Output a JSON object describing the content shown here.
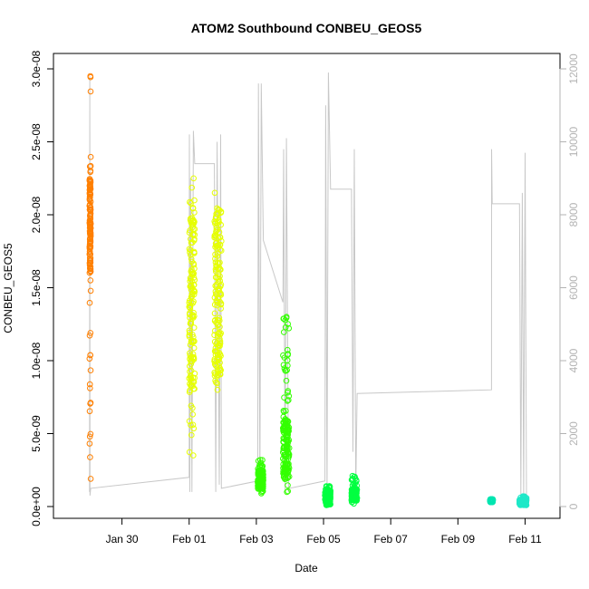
{
  "chart_data": {
    "type": "scatter",
    "title": "ATOM2 Southbound CONBEU_GEOS5",
    "xlabel": "Date",
    "ylabel": "CONBEU_GEOS5",
    "x_axis": {
      "type": "date",
      "range": [
        "2016-01-28T12:00",
        "2016-02-11T12:00"
      ],
      "ticks": [
        {
          "value": "2016-01-30",
          "label": "Jan 30"
        },
        {
          "value": "2016-02-01",
          "label": "Feb 01"
        },
        {
          "value": "2016-02-03",
          "label": "Feb 03"
        },
        {
          "value": "2016-02-05",
          "label": "Feb 05"
        },
        {
          "value": "2016-02-07",
          "label": "Feb 07"
        },
        {
          "value": "2016-02-09",
          "label": "Feb 09"
        },
        {
          "value": "2016-02-11",
          "label": "Feb 11"
        }
      ]
    },
    "y_axis": {
      "range": [
        0,
        3e-08
      ],
      "ticks": [
        {
          "value": 0,
          "label": "0.0e+00"
        },
        {
          "value": 5e-09,
          "label": "5.0e-09"
        },
        {
          "value": 1e-08,
          "label": "1.0e-08"
        },
        {
          "value": 1.5e-08,
          "label": "1.5e-08"
        },
        {
          "value": 2e-08,
          "label": "2.0e-08"
        },
        {
          "value": 2.5e-08,
          "label": "2.5e-08"
        },
        {
          "value": 3e-08,
          "label": "3.0e-08"
        }
      ]
    },
    "y2_axis": {
      "range": [
        0,
        12000
      ],
      "color": "#b3b3b3",
      "ticks": [
        {
          "value": 0,
          "label": "0"
        },
        {
          "value": 2000,
          "label": "2000"
        },
        {
          "value": 4000,
          "label": "4000"
        },
        {
          "value": 6000,
          "label": "6000"
        },
        {
          "value": 8000,
          "label": "8000"
        },
        {
          "value": 10000,
          "label": "10000"
        },
        {
          "value": 12000,
          "label": "12000"
        }
      ]
    },
    "grid": false,
    "legend": "none",
    "scatter_groups": [
      {
        "color": "#ff7f00",
        "x_start": "2016-01-29T00:50",
        "x_end": "2016-01-29T01:40",
        "y_min": 1.9e-09,
        "y_max": 2.95e-08,
        "y_dense": [
          1.6e-08,
          2.25e-08
        ]
      },
      {
        "color": "#e6ff00",
        "x_start": "2016-02-01T00:00",
        "x_end": "2016-02-01T04:00",
        "y_min": 3.5e-09,
        "y_max": 2.25e-08,
        "y_dense": [
          8e-09,
          2e-08
        ]
      },
      {
        "color": "#e6ff00",
        "x_start": "2016-02-01T18:00",
        "x_end": "2016-02-01T23:00",
        "y_min": 8e-09,
        "y_max": 2.15e-08,
        "y_dense": [
          9e-09,
          2.05e-08
        ]
      },
      {
        "color": "#33ff00",
        "x_start": "2016-02-03T01:00",
        "x_end": "2016-02-03T05:00",
        "y_min": 9e-10,
        "y_max": 3.2e-09,
        "y_dense": [
          1.2e-09,
          2.5e-09
        ]
      },
      {
        "color": "#33ff00",
        "x_start": "2016-02-03T19:00",
        "x_end": "2016-02-03T23:30",
        "y_min": 1e-09,
        "y_max": 1.3e-08,
        "y_dense": [
          2e-09,
          6e-09
        ]
      },
      {
        "color": "#00ff40",
        "x_start": "2016-02-05T01:00",
        "x_end": "2016-02-05T05:00",
        "y_min": 1e-10,
        "y_max": 1.4e-09,
        "y_dense": [
          3e-10,
          1e-09
        ]
      },
      {
        "color": "#00ff40",
        "x_start": "2016-02-05T20:00",
        "x_end": "2016-02-06T00:00",
        "y_min": 2e-10,
        "y_max": 2.1e-09,
        "y_dense": [
          4e-10,
          1.2e-09
        ]
      },
      {
        "color": "#00e5b0",
        "x_start": "2016-02-09T23:00",
        "x_end": "2016-02-10T01:00",
        "y_min": 3e-10,
        "y_max": 5e-10,
        "y_dense": [
          3e-10,
          5e-10
        ]
      },
      {
        "color": "#1ee8c8",
        "x_start": "2016-02-10T20:00",
        "x_end": "2016-02-11T01:00",
        "y_min": 1e-10,
        "y_max": 7e-10,
        "y_dense": [
          1e-10,
          5e-10
        ]
      }
    ],
    "altitude_line": {
      "color": "#c8c8c8",
      "axis": "y2",
      "points": [
        [
          "2016-01-29T00:50",
          400
        ],
        [
          "2016-01-29T01:00",
          11800
        ],
        [
          "2016-01-29T01:10",
          300
        ],
        [
          "2016-01-29T01:40",
          500
        ],
        [
          "2016-02-01T00:00",
          800
        ],
        [
          "2016-02-01T00:10",
          10200
        ],
        [
          "2016-02-01T00:30",
          400
        ],
        [
          "2016-02-01T01:00",
          9000
        ],
        [
          "2016-02-01T02:00",
          400
        ],
        [
          "2016-02-01T03:00",
          10300
        ],
        [
          "2016-02-01T04:00",
          9400
        ],
        [
          "2016-02-01T18:00",
          9400
        ],
        [
          "2016-02-01T19:00",
          400
        ],
        [
          "2016-02-01T20:00",
          10000
        ],
        [
          "2016-02-01T21:30",
          600
        ],
        [
          "2016-02-01T22:30",
          10200
        ],
        [
          "2016-02-01T23:00",
          500
        ],
        [
          "2016-02-03T01:00",
          700
        ],
        [
          "2016-02-03T01:30",
          11600
        ],
        [
          "2016-02-03T02:30",
          500
        ],
        [
          "2016-02-03T03:30",
          11600
        ],
        [
          "2016-02-03T05:00",
          7300
        ],
        [
          "2016-02-03T19:00",
          5600
        ],
        [
          "2016-02-03T19:30",
          9800
        ],
        [
          "2016-02-03T20:30",
          400
        ],
        [
          "2016-02-03T21:30",
          10100
        ],
        [
          "2016-02-03T23:00",
          400
        ],
        [
          "2016-02-03T23:30",
          500
        ],
        [
          "2016-02-05T01:00",
          700
        ],
        [
          "2016-02-05T01:30",
          11000
        ],
        [
          "2016-02-05T02:30",
          300
        ],
        [
          "2016-02-05T03:30",
          11900
        ],
        [
          "2016-02-05T05:00",
          8700
        ],
        [
          "2016-02-05T20:00",
          8700
        ],
        [
          "2016-02-05T21:00",
          1500
        ],
        [
          "2016-02-05T22:00",
          9800
        ],
        [
          "2016-02-05T23:00",
          400
        ],
        [
          "2016-02-06T00:00",
          3100
        ],
        [
          "2016-02-10T00:00",
          3200
        ],
        [
          "2016-02-10T00:05",
          9800
        ],
        [
          "2016-02-10T00:30",
          8300
        ],
        [
          "2016-02-10T20:00",
          8300
        ],
        [
          "2016-02-10T21:00",
          300
        ],
        [
          "2016-02-10T22:00",
          8600
        ],
        [
          "2016-02-10T23:00",
          300
        ],
        [
          "2016-02-11T00:00",
          9700
        ],
        [
          "2016-02-11T01:00",
          300
        ]
      ]
    }
  }
}
